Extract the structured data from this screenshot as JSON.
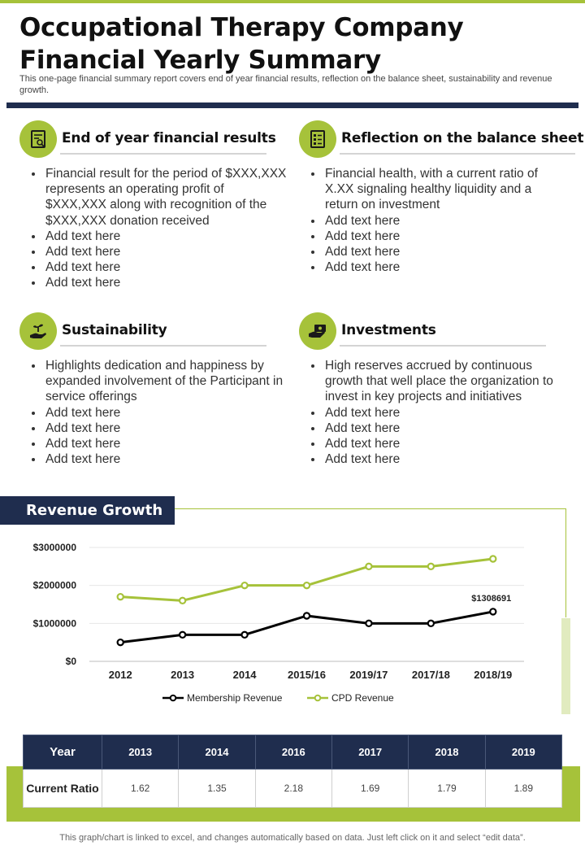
{
  "title": "Occupational Therapy Company Financial Yearly Summary",
  "subtitle": "This one-page financial summary report covers end of year financial results, reflection on the balance sheet, sustainability and revenue growth.",
  "sections": [
    {
      "title": "End of year financial results",
      "icon": "financial-report-icon",
      "bullets": [
        "Financial result for the period of $XXX,XXX represents an operating profit of $XXX,XXX along with recognition of the $XXX,XXX donation received",
        "Add text here",
        "Add text here",
        "Add text here",
        "Add text here"
      ]
    },
    {
      "title": "Reflection on the balance sheet",
      "icon": "balance-sheet-icon",
      "bullets": [
        "Financial health, with a current ratio of X.XX signaling healthy liquidity and a return on investment",
        "Add text here",
        "Add text here",
        "Add text here",
        "Add text here"
      ]
    },
    {
      "title": "Sustainability",
      "icon": "plant-hand-icon",
      "bullets": [
        "Highlights dedication and happiness by expanded involvement  of the Participant in service offerings",
        "Add text here",
        "Add text here",
        "Add text here",
        "Add text here"
      ]
    },
    {
      "title": "Investments",
      "icon": "money-hand-icon",
      "bullets": [
        "High reserves accrued by continuous growth that well place the organization to invest in key projects and initiatives",
        "Add text here",
        "Add text here",
        "Add text here",
        "Add text here"
      ]
    }
  ],
  "revenue_header": "Revenue Growth",
  "chart_data": {
    "type": "line",
    "x": [
      "2012",
      "2013",
      "2014",
      "2015/16",
      "2019/17",
      "2017/18",
      "2018/19"
    ],
    "series": [
      {
        "name": "Membership Revenue",
        "color": "#000000",
        "values": [
          500000,
          700000,
          700000,
          1200000,
          1000000,
          1000000,
          1308691
        ]
      },
      {
        "name": "CPD Revenue",
        "color": "#a6c23a",
        "values": [
          1700000,
          1600000,
          2000000,
          2000000,
          2500000,
          2500000,
          2700000
        ]
      }
    ],
    "y_ticks": [
      "$0",
      "$1000000",
      "$2000000",
      "$3000000"
    ],
    "ylim": [
      0,
      3000000
    ],
    "data_label": "$1308691",
    "legend_position": "bottom",
    "grid": "horizontal"
  },
  "table": {
    "header_label": "Year",
    "years": [
      "2013",
      "2014",
      "2016",
      "2017",
      "2018",
      "2019"
    ],
    "row_label": "Current Ratio",
    "values": [
      "1.62",
      "1.35",
      "2.18",
      "1.69",
      "1.79",
      "1.89"
    ]
  },
  "footnote": "This graph/chart is linked to excel,  and changes automatically based on data. Just left click on it and select “edit data”.",
  "colors": {
    "accent_green": "#a6c23a",
    "navy": "#1f2d4e"
  }
}
